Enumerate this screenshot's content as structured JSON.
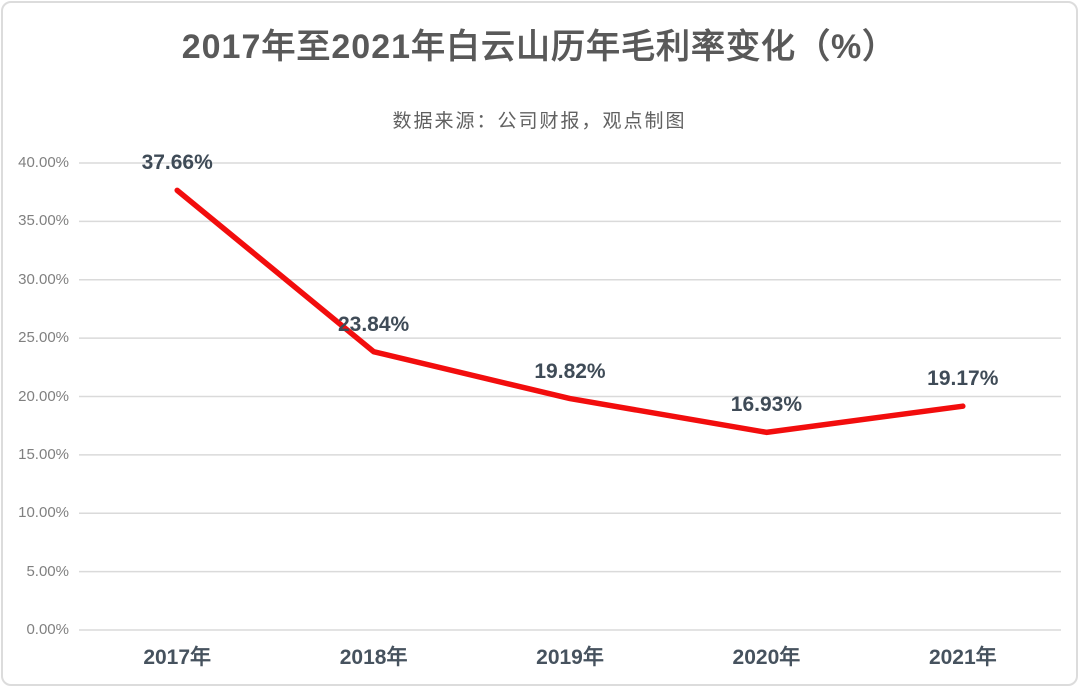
{
  "chart_data": {
    "type": "line",
    "title": "2017年至2021年白云山历年毛利率变化（%）",
    "subtitle": "数据来源：公司财报，观点制图",
    "categories": [
      "2017年",
      "2018年",
      "2019年",
      "2020年",
      "2021年"
    ],
    "values": [
      37.66,
      23.84,
      19.82,
      16.93,
      19.17
    ],
    "value_labels": [
      "37.66%",
      "23.84%",
      "19.82%",
      "16.93%",
      "19.17%"
    ],
    "series_name": "毛利率",
    "xlabel": "",
    "ylabel": "",
    "ylim": [
      0,
      40
    ],
    "ytick_step": 5,
    "ytick_labels": [
      "0.00%",
      "5.00%",
      "10.00%",
      "15.00%",
      "20.00%",
      "25.00%",
      "30.00%",
      "35.00%",
      "40.00%"
    ],
    "grid": true,
    "legend": "none",
    "colors": {
      "line": "#f20d0d",
      "gridline": "#dadada",
      "ytick_label": "#808080",
      "xtick_label": "#46525e",
      "data_label": "#3f4b57",
      "title": "#595959",
      "subtitle": "#616161",
      "background": "#ffffff",
      "frame_border": "#dcdcdc"
    }
  }
}
